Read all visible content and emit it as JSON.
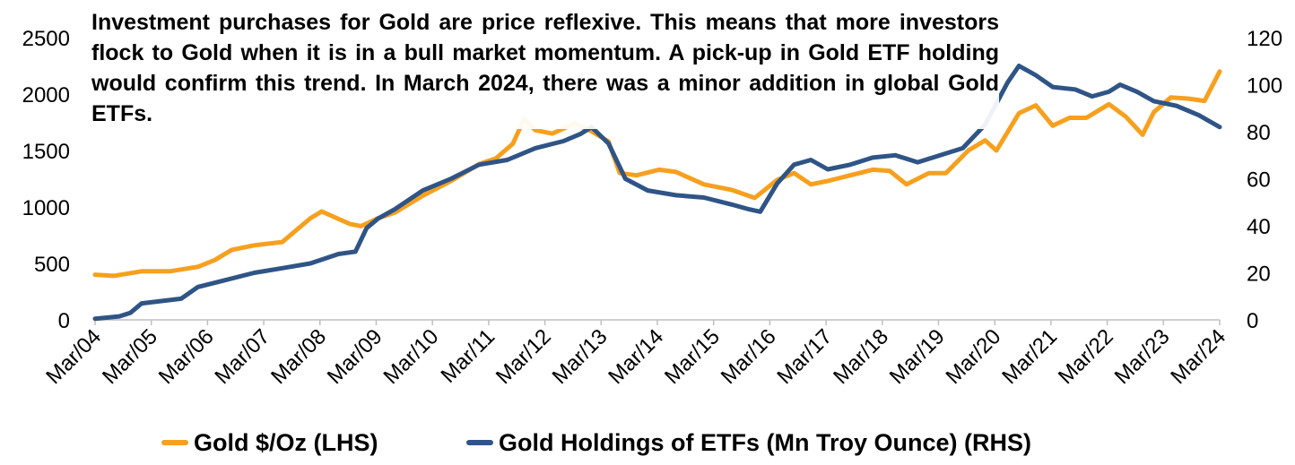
{
  "chart_data": {
    "type": "line",
    "annotation": "Investment purchases for Gold are price reflexive. This means that more investors flock to Gold when it is in a bull market momentum. A pick-up in Gold ETF holding would confirm this trend. In March 2024, there was a minor addition in global Gold ETFs.",
    "x_tick_labels": [
      "Mar/04",
      "Mar/05",
      "Mar/06",
      "Mar/07",
      "Mar/08",
      "Mar/09",
      "Mar/10",
      "Mar/11",
      "Mar/12",
      "Mar/13",
      "Mar/14",
      "Mar/15",
      "Mar/16",
      "Mar/17",
      "Mar/18",
      "Mar/19",
      "Mar/20",
      "Mar/21",
      "Mar/22",
      "Mar/23",
      "Mar/24"
    ],
    "x_range": [
      2004.17,
      2024.17
    ],
    "left_axis": {
      "label": "Gold $/Oz (LHS)",
      "ylim": [
        0,
        2500
      ],
      "ticks": [
        0,
        500,
        1000,
        1500,
        2000,
        2500
      ]
    },
    "right_axis": {
      "label": "Gold Holdings of ETFs (Mn Troy Ounce) (RHS)",
      "ylim": [
        0,
        120
      ],
      "ticks": [
        0,
        20,
        40,
        60,
        80,
        100,
        120
      ]
    },
    "series": [
      {
        "name": "Gold $/Oz (LHS)",
        "axis": "left",
        "color": "#F7A01E",
        "x": [
          2004.17,
          2004.5,
          2005.0,
          2005.5,
          2006.0,
          2006.3,
          2006.6,
          2007.0,
          2007.5,
          2008.0,
          2008.2,
          2008.7,
          2008.9,
          2009.2,
          2009.5,
          2010.0,
          2010.5,
          2011.0,
          2011.3,
          2011.6,
          2011.8,
          2012.0,
          2012.3,
          2012.7,
          2013.0,
          2013.3,
          2013.5,
          2013.8,
          2014.2,
          2014.5,
          2015.0,
          2015.5,
          2015.9,
          2016.3,
          2016.6,
          2016.9,
          2017.2,
          2017.6,
          2018.0,
          2018.3,
          2018.6,
          2019.0,
          2019.3,
          2019.7,
          2020.0,
          2020.2,
          2020.6,
          2020.9,
          2021.2,
          2021.5,
          2021.8,
          2022.2,
          2022.5,
          2022.8,
          2023.0,
          2023.3,
          2023.6,
          2023.9,
          2024.17
        ],
        "values": [
          400,
          390,
          430,
          430,
          470,
          530,
          620,
          660,
          690,
          900,
          960,
          850,
          830,
          900,
          950,
          1100,
          1230,
          1380,
          1430,
          1560,
          1780,
          1680,
          1650,
          1740,
          1670,
          1580,
          1300,
          1280,
          1330,
          1310,
          1200,
          1150,
          1080,
          1240,
          1300,
          1200,
          1230,
          1280,
          1330,
          1320,
          1200,
          1300,
          1300,
          1500,
          1590,
          1500,
          1830,
          1900,
          1720,
          1790,
          1790,
          1910,
          1800,
          1640,
          1840,
          1970,
          1960,
          1940,
          2200
        ]
      },
      {
        "name": "Gold Holdings of ETFs (Mn Troy Ounce) (RHS)",
        "axis": "right",
        "color": "#2F5486",
        "x": [
          2004.17,
          2004.6,
          2004.8,
          2005.0,
          2005.7,
          2006.0,
          2006.5,
          2007.0,
          2007.5,
          2008.0,
          2008.5,
          2008.8,
          2009.0,
          2009.2,
          2009.5,
          2010.0,
          2010.5,
          2011.0,
          2011.5,
          2012.0,
          2012.5,
          2012.8,
          2013.0,
          2013.3,
          2013.6,
          2014.0,
          2014.5,
          2015.0,
          2015.5,
          2015.8,
          2016.0,
          2016.3,
          2016.6,
          2016.9,
          2017.2,
          2017.6,
          2018.0,
          2018.4,
          2018.8,
          2019.2,
          2019.6,
          2020.0,
          2020.4,
          2020.6,
          2020.9,
          2021.2,
          2021.6,
          2021.9,
          2022.2,
          2022.4,
          2022.7,
          2023.0,
          2023.4,
          2023.8,
          2024.17
        ],
        "values": [
          0.5,
          1.5,
          3,
          7,
          9,
          14,
          17,
          20,
          22,
          24,
          28,
          29,
          39,
          43,
          47,
          55,
          60,
          66,
          68,
          73,
          76,
          79,
          82,
          75,
          60,
          55,
          53,
          52,
          49,
          47,
          46,
          58,
          66,
          68,
          64,
          66,
          69,
          70,
          67,
          70,
          73,
          83,
          101,
          108,
          104,
          99,
          98,
          95,
          97,
          100,
          97,
          93,
          91,
          87,
          82
        ]
      }
    ]
  }
}
